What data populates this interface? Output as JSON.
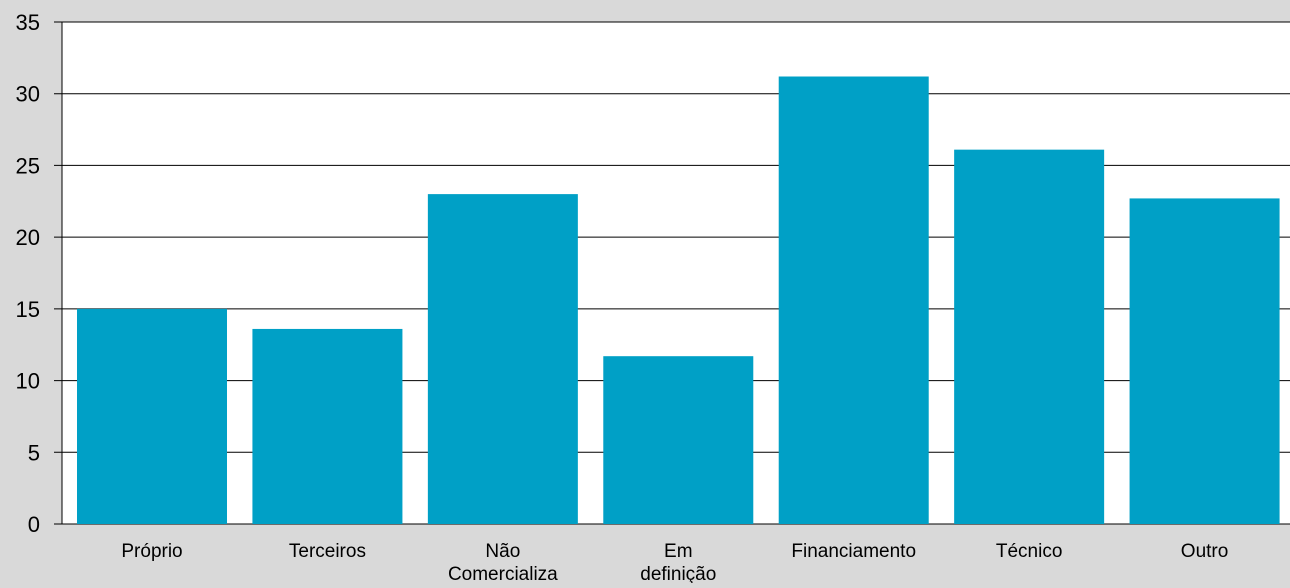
{
  "chart_data": {
    "type": "bar",
    "categories": [
      [
        "Próprio"
      ],
      [
        "Terceiros"
      ],
      [
        "Não",
        "Comercializa"
      ],
      [
        "Em",
        "definição"
      ],
      [
        "Financiamento"
      ],
      [
        "Técnico"
      ],
      [
        "Outro"
      ]
    ],
    "values": [
      15.0,
      13.6,
      23.0,
      11.7,
      31.2,
      26.1,
      22.7
    ],
    "ylim": [
      0,
      35
    ],
    "yticks": [
      "0",
      "5",
      "10",
      "15",
      "20",
      "25",
      "30",
      "35"
    ],
    "grid": true,
    "legend": "none",
    "title": "",
    "xlabel": "",
    "ylabel": "",
    "colors": {
      "bar": "#00a0c6",
      "plot_bg": "#ffffff",
      "page_bg": "#d9d9d9",
      "grid": "#000000",
      "text": "#000000"
    }
  }
}
